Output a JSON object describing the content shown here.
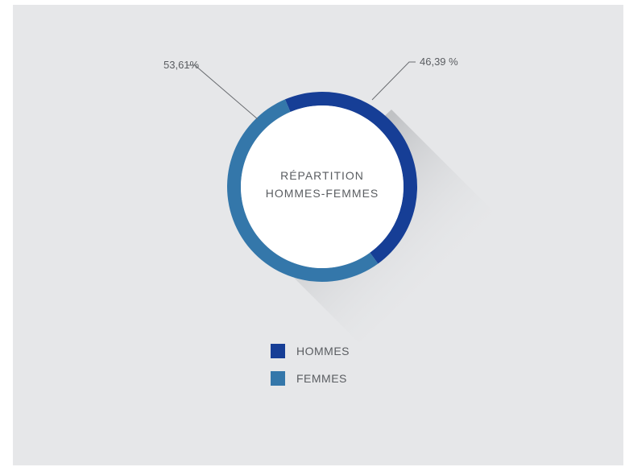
{
  "chart_data": {
    "type": "pie",
    "variant": "donut",
    "center_title_lines": [
      "RÉPARTITION",
      "HOMMES-FEMMES"
    ],
    "slices": [
      {
        "name": "HOMMES",
        "value": 46.39,
        "label": "46,39 %",
        "color": "#163e96"
      },
      {
        "name": "FEMMES",
        "value": 53.61,
        "label": "53,61%",
        "color": "#3477aa"
      }
    ],
    "legend_placement": "bottom"
  },
  "colors": {
    "background": "#e6e7e9",
    "ring_center": "#ffffff",
    "text": "#5a5d61"
  }
}
